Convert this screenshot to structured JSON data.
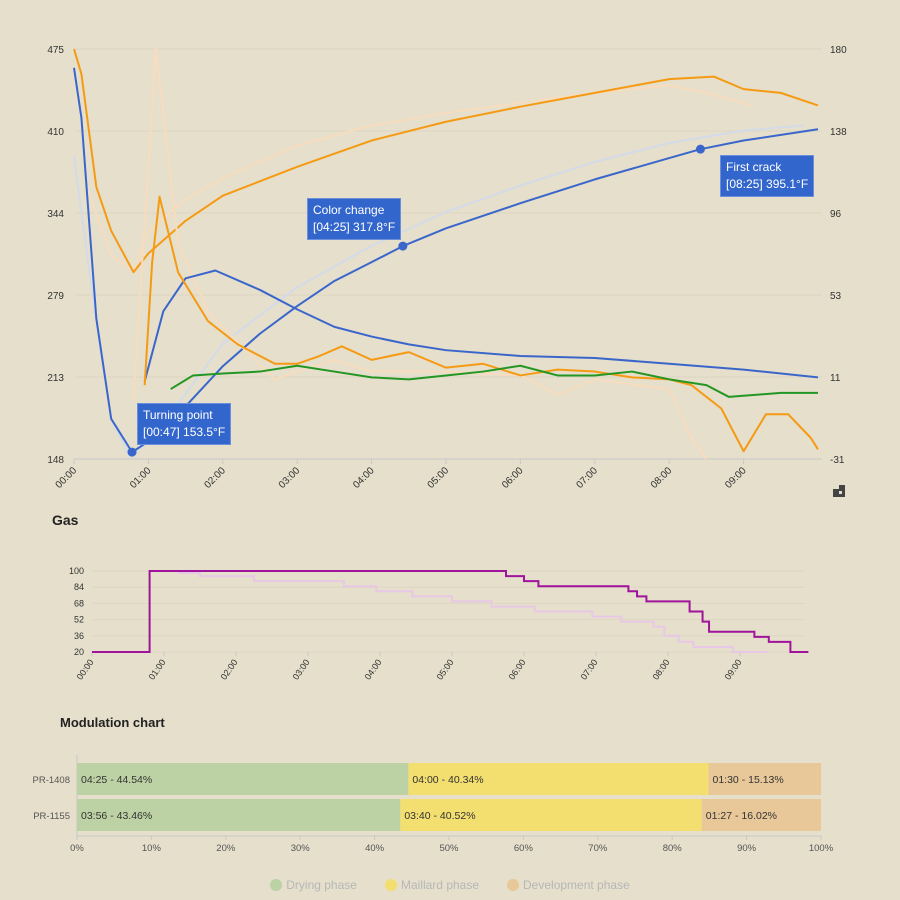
{
  "chart_data": [
    {
      "type": "line",
      "title": "",
      "xlabel": "",
      "ylabel": "",
      "x_ticks": [
        "00:00",
        "01:00",
        "02:00",
        "03:00",
        "04:00",
        "05:00",
        "06:00",
        "07:00",
        "08:00",
        "09:00"
      ],
      "y_left_ticks": [
        "475",
        "410",
        "344",
        "279",
        "213",
        "148"
      ],
      "y_left_range": [
        148,
        475
      ],
      "y_right_ticks": [
        "180",
        "138",
        "96",
        "53",
        "11",
        "-31"
      ],
      "y_right_range": [
        -31,
        180
      ],
      "series": [
        {
          "name": "bean-temp-ref",
          "axis": "left",
          "color": "#d3dbe9",
          "points": [
            [
              0,
              390
            ],
            [
              0.2,
              300
            ],
            [
              0.5,
              180
            ],
            [
              0.75,
              150
            ],
            [
              1,
              162
            ],
            [
              1.5,
              200
            ],
            [
              2,
              240
            ],
            [
              3,
              285
            ],
            [
              4,
              318
            ],
            [
              5,
              345
            ],
            [
              6,
              366
            ],
            [
              7,
              385
            ],
            [
              8,
              400
            ],
            [
              9,
              410
            ],
            [
              9.8,
              414
            ]
          ]
        },
        {
          "name": "bean-temp",
          "axis": "left",
          "color": "#3a66cc",
          "points": [
            [
              0,
              460
            ],
            [
              0.1,
              420
            ],
            [
              0.3,
              260
            ],
            [
              0.5,
              180
            ],
            [
              0.78,
              153.5
            ],
            [
              1,
              162
            ],
            [
              1.5,
              190
            ],
            [
              2,
              222
            ],
            [
              2.5,
              248
            ],
            [
              3,
              270
            ],
            [
              3.5,
              290
            ],
            [
              4,
              305
            ],
            [
              4.42,
              317.8
            ],
            [
              5,
              332
            ],
            [
              6,
              352
            ],
            [
              7,
              371
            ],
            [
              8,
              388
            ],
            [
              8.42,
              395.1
            ],
            [
              9,
              402
            ],
            [
              10,
              411
            ]
          ]
        },
        {
          "name": "env-temp-ref",
          "axis": "left",
          "color": "#f8dcbe",
          "points": [
            [
              0.2,
              360
            ],
            [
              0.5,
              310
            ],
            [
              0.8,
              298
            ],
            [
              1,
              330
            ],
            [
              1.5,
              355
            ],
            [
              2,
              372
            ],
            [
              3,
              398
            ],
            [
              4,
              414
            ],
            [
              5,
              424
            ],
            [
              6,
              432
            ],
            [
              7,
              440
            ],
            [
              8,
              446
            ],
            [
              8.5,
              440
            ],
            [
              9,
              432
            ],
            [
              9.1,
              430
            ]
          ]
        },
        {
          "name": "env-temp",
          "axis": "left",
          "color": "#f59a12",
          "points": [
            [
              0,
              475
            ],
            [
              0.1,
              455
            ],
            [
              0.3,
              365
            ],
            [
              0.5,
              330
            ],
            [
              0.8,
              297
            ],
            [
              1,
              312
            ],
            [
              1.5,
              338
            ],
            [
              2,
              358
            ],
            [
              3,
              381
            ],
            [
              4,
              402
            ],
            [
              5,
              417
            ],
            [
              6,
              429
            ],
            [
              7,
              440
            ],
            [
              8,
              451
            ],
            [
              8.6,
              453
            ],
            [
              9,
              443
            ],
            [
              9.5,
              440
            ],
            [
              10,
              430
            ]
          ]
        },
        {
          "name": "ror-ref",
          "axis": "right",
          "color": "#f8dcbe",
          "points": [
            [
              0.8,
              0
            ],
            [
              1.1,
              180
            ],
            [
              1.4,
              80
            ],
            [
              1.8,
              45
            ],
            [
              2.3,
              25
            ],
            [
              2.7,
              10
            ],
            [
              3,
              14
            ],
            [
              3.5,
              20
            ],
            [
              4,
              14
            ],
            [
              5,
              14
            ],
            [
              6,
              12
            ],
            [
              6.5,
              2
            ],
            [
              7,
              10
            ],
            [
              8,
              5
            ],
            [
              8.3,
              -20
            ],
            [
              8.5,
              -31
            ]
          ]
        },
        {
          "name": "ror-bean",
          "axis": "right",
          "color": "#3a66cc",
          "points": [
            [
              0.95,
              9
            ],
            [
              1.2,
              45
            ],
            [
              1.5,
              62
            ],
            [
              1.9,
              66
            ],
            [
              2.5,
              56
            ],
            [
              3,
              46
            ],
            [
              3.5,
              37
            ],
            [
              4,
              32
            ],
            [
              4.5,
              28
            ],
            [
              5,
              25
            ],
            [
              6,
              22
            ],
            [
              7,
              21
            ],
            [
              8,
              18
            ],
            [
              9,
              15
            ],
            [
              10,
              11
            ]
          ]
        },
        {
          "name": "ror-env",
          "axis": "right",
          "color": "#f59a12",
          "points": [
            [
              0.95,
              7
            ],
            [
              1.05,
              70
            ],
            [
              1.15,
              104
            ],
            [
              1.4,
              65
            ],
            [
              1.8,
              40
            ],
            [
              2.2,
              28
            ],
            [
              2.7,
              18
            ],
            [
              3,
              18
            ],
            [
              3.3,
              22
            ],
            [
              3.6,
              27
            ],
            [
              4,
              20
            ],
            [
              4.5,
              24
            ],
            [
              5,
              16
            ],
            [
              5.5,
              18
            ],
            [
              6,
              12
            ],
            [
              6.5,
              15
            ],
            [
              7,
              14
            ],
            [
              7.5,
              11
            ],
            [
              8,
              10
            ],
            [
              8.3,
              7
            ],
            [
              8.7,
              -5
            ],
            [
              9,
              -27
            ],
            [
              9.3,
              -8
            ],
            [
              9.6,
              -8
            ],
            [
              9.9,
              -20
            ],
            [
              10,
              -26
            ]
          ]
        },
        {
          "name": "ror-green",
          "axis": "right",
          "color": "#239623",
          "points": [
            [
              1.3,
              5
            ],
            [
              1.6,
              12
            ],
            [
              2,
              13
            ],
            [
              2.5,
              14
            ],
            [
              3,
              17
            ],
            [
              3.5,
              14
            ],
            [
              4,
              11
            ],
            [
              4.5,
              10
            ],
            [
              5,
              12
            ],
            [
              5.5,
              14
            ],
            [
              6,
              17
            ],
            [
              6.5,
              12
            ],
            [
              7,
              12
            ],
            [
              7.5,
              14
            ],
            [
              8,
              10
            ],
            [
              8.5,
              7
            ],
            [
              8.8,
              1
            ],
            [
              9.5,
              3
            ],
            [
              10,
              3
            ]
          ]
        }
      ],
      "annotations": [
        {
          "label": "Turning point",
          "value": "[00:47] 153.5°F",
          "x": 0.78,
          "y": 153.5
        },
        {
          "label": "Color change",
          "value": "[04:25] 317.8°F",
          "x": 4.42,
          "y": 317.8
        },
        {
          "label": "First crack",
          "value": "[08:25] 395.1°F",
          "x": 8.42,
          "y": 395.1
        }
      ]
    },
    {
      "type": "line",
      "title": "Gas",
      "x_ticks": [
        "00:00",
        "01:00",
        "02:00",
        "03:00",
        "04:00",
        "05:00",
        "06:00",
        "07:00",
        "08:00",
        "09:00"
      ],
      "y_ticks": [
        "100",
        "84",
        "68",
        "52",
        "36",
        "20"
      ],
      "y_range": [
        20,
        100
      ],
      "series": [
        {
          "name": "gas-ref",
          "color": "#e8c8e6",
          "steps": [
            [
              0.8,
              100
            ],
            [
              1.2,
              98
            ],
            [
              1.5,
              95
            ],
            [
              2.25,
              90
            ],
            [
              3.5,
              85
            ],
            [
              3.95,
              80
            ],
            [
              4.45,
              75
            ],
            [
              5,
              70
            ],
            [
              5.55,
              65
            ],
            [
              6.15,
              60
            ],
            [
              6.95,
              55
            ],
            [
              7.35,
              50
            ],
            [
              7.8,
              45
            ],
            [
              7.95,
              36
            ],
            [
              8.15,
              30
            ],
            [
              8.35,
              25
            ],
            [
              8.9,
              20
            ],
            [
              9.4,
              20
            ]
          ]
        },
        {
          "name": "gas",
          "color": "#a0149c",
          "steps": [
            [
              0,
              20
            ],
            [
              0.8,
              100
            ],
            [
              5.75,
              95
            ],
            [
              6,
              90
            ],
            [
              6.2,
              85
            ],
            [
              7.45,
              80
            ],
            [
              7.57,
              75
            ],
            [
              7.7,
              70
            ],
            [
              8.3,
              60
            ],
            [
              8.48,
              50
            ],
            [
              8.57,
              40
            ],
            [
              9.2,
              35
            ],
            [
              9.4,
              30
            ],
            [
              9.7,
              20
            ],
            [
              9.95,
              20
            ]
          ]
        }
      ]
    },
    {
      "type": "bar",
      "title": "Modulation chart",
      "stacked": true,
      "categories": [
        "PR-1408",
        "PR-1155"
      ],
      "x_ticks": [
        "0%",
        "10%",
        "20%",
        "30%",
        "40%",
        "50%",
        "60%",
        "70%",
        "80%",
        "90%",
        "100%"
      ],
      "series": [
        {
          "name": "Drying phase",
          "color": "#bcd2a4",
          "values": [
            44.54,
            43.46
          ],
          "labels": [
            "04:25 - 44.54%",
            "03:56 - 43.46%"
          ]
        },
        {
          "name": "Maillard phase",
          "color": "#f3de70",
          "values": [
            40.34,
            40.52
          ],
          "labels": [
            "04:00 - 40.34%",
            "03:40 - 40.52%"
          ]
        },
        {
          "name": "Development phase",
          "color": "#e8c898",
          "values": [
            15.13,
            16.02
          ],
          "labels": [
            "01:30 - 15.13%",
            "01:27 - 16.02%"
          ]
        }
      ]
    }
  ]
}
